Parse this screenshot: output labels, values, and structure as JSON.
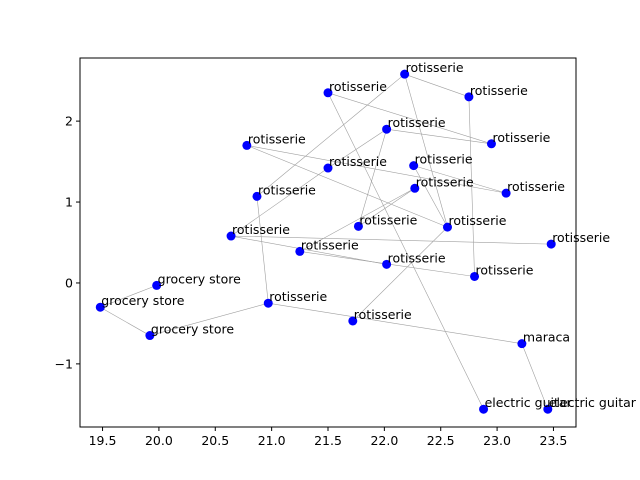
{
  "chart_data": {
    "type": "scatter",
    "title": "",
    "xlabel": "",
    "ylabel": "",
    "xlim": [
      19.3,
      23.7
    ],
    "ylim": [
      -1.78,
      2.78
    ],
    "xticks": [
      19.5,
      20.0,
      20.5,
      21.0,
      21.5,
      22.0,
      22.5,
      23.0,
      23.5
    ],
    "xtick_labels": [
      "19.5",
      "20.0",
      "20.5",
      "21.0",
      "21.5",
      "22.0",
      "22.5",
      "23.0",
      "23.5"
    ],
    "yticks": [
      -1,
      0,
      1,
      2
    ],
    "ytick_labels": [
      "−1",
      "0",
      "1",
      "2"
    ],
    "grid": false,
    "marker_color": "#0000ff",
    "edge_color": "#a0a0a0",
    "points": [
      {
        "x": 22.18,
        "y": 2.58,
        "label": "rotisserie"
      },
      {
        "x": 21.5,
        "y": 2.35,
        "label": "rotisserie"
      },
      {
        "x": 22.75,
        "y": 2.3,
        "label": "rotisserie"
      },
      {
        "x": 22.02,
        "y": 1.9,
        "label": "rotisserie"
      },
      {
        "x": 22.95,
        "y": 1.72,
        "label": "rotisserie"
      },
      {
        "x": 20.78,
        "y": 1.7,
        "label": "rotisserie"
      },
      {
        "x": 21.5,
        "y": 1.42,
        "label": "rotisserie"
      },
      {
        "x": 22.26,
        "y": 1.45,
        "label": "rotisserie"
      },
      {
        "x": 22.27,
        "y": 1.17,
        "label": "rotisserie"
      },
      {
        "x": 23.08,
        "y": 1.11,
        "label": "rotisserie"
      },
      {
        "x": 20.87,
        "y": 1.07,
        "label": "rotisserie"
      },
      {
        "x": 21.77,
        "y": 0.7,
        "label": "rotisserie"
      },
      {
        "x": 22.56,
        "y": 0.69,
        "label": "rotisserie"
      },
      {
        "x": 20.64,
        "y": 0.58,
        "label": "rotisserie"
      },
      {
        "x": 23.48,
        "y": 0.48,
        "label": "rotisserie"
      },
      {
        "x": 21.25,
        "y": 0.39,
        "label": "rotisserie"
      },
      {
        "x": 22.02,
        "y": 0.23,
        "label": "rotisserie"
      },
      {
        "x": 22.8,
        "y": 0.08,
        "label": "rotisserie"
      },
      {
        "x": 19.98,
        "y": -0.03,
        "label": "grocery store"
      },
      {
        "x": 19.48,
        "y": -0.3,
        "label": "grocery store"
      },
      {
        "x": 20.97,
        "y": -0.25,
        "label": "rotisserie"
      },
      {
        "x": 19.92,
        "y": -0.65,
        "label": "grocery store"
      },
      {
        "x": 21.72,
        "y": -0.47,
        "label": "rotisserie"
      },
      {
        "x": 23.22,
        "y": -0.75,
        "label": "maraca"
      },
      {
        "x": 22.88,
        "y": -1.56,
        "label": "electric guitar"
      },
      {
        "x": 23.45,
        "y": -1.56,
        "label": "electric guitar"
      }
    ],
    "edges": [
      [
        0,
        2
      ],
      [
        0,
        10
      ],
      [
        1,
        4
      ],
      [
        1,
        24
      ],
      [
        2,
        17
      ],
      [
        3,
        4
      ],
      [
        3,
        11
      ],
      [
        3,
        6
      ],
      [
        5,
        12
      ],
      [
        5,
        9
      ],
      [
        7,
        9
      ],
      [
        7,
        12
      ],
      [
        8,
        15
      ],
      [
        8,
        11
      ],
      [
        12,
        22
      ],
      [
        13,
        14
      ],
      [
        13,
        16
      ],
      [
        15,
        17
      ],
      [
        18,
        19
      ],
      [
        19,
        21
      ],
      [
        21,
        20
      ],
      [
        20,
        23
      ],
      [
        23,
        25
      ],
      [
        10,
        20
      ],
      [
        6,
        13
      ],
      [
        0,
        12
      ]
    ]
  }
}
